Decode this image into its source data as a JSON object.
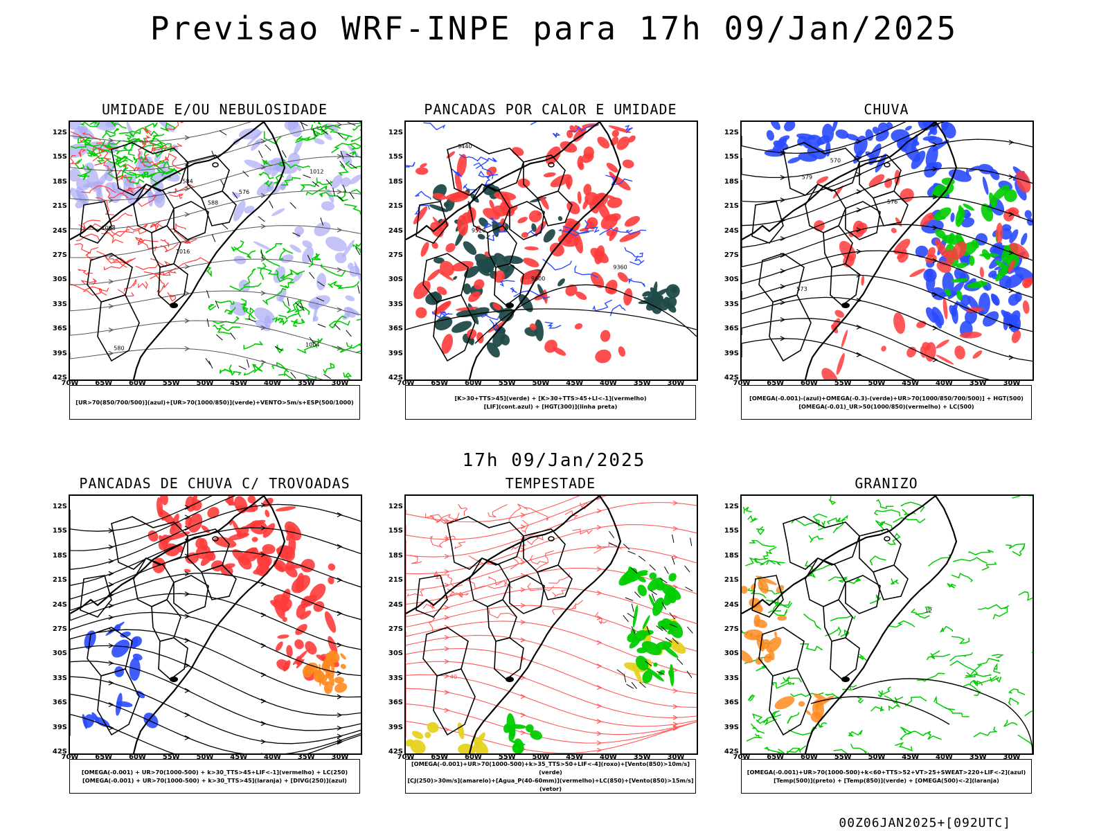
{
  "main_title": "Previsao WRF-INPE  para 17h 09/Jan/2025",
  "mid_title": "17h 09/Jan/2025",
  "footer": "00Z06JAN2025+[092UTC]",
  "lat_labels": [
    "12S",
    "15S",
    "18S",
    "21S",
    "24S",
    "27S",
    "30S",
    "33S",
    "36S",
    "39S",
    "42S"
  ],
  "lon_labels": [
    "70W",
    "65W",
    "60W",
    "55W",
    "50W",
    "45W",
    "40W",
    "35W",
    "30W"
  ],
  "panels": [
    {
      "title": "UMIDADE E/OU NEBULOSIDADE",
      "legend": [
        "[UR>70(850/700/500)](azul)+[UR>70(1000/850)](verde)+VENTO>5m/s+ESP(500/1000)"
      ],
      "contour_labels": [
        "1004",
        "1008",
        "1012",
        "1016",
        "576",
        "580",
        "584",
        "588"
      ]
    },
    {
      "title": "PANCADAS POR CALOR E UMIDADE",
      "legend": [
        "[K>30+TTS>45](verde) + [K>30+TTS>45+LI<-1](vermelho)",
        "[LIF](cont.azul) + [HGT(300)](linha preta)"
      ],
      "contour_labels": [
        "9600",
        "9520",
        "9440",
        "9360"
      ]
    },
    {
      "title": "CHUVA",
      "legend": [
        "[OMEGA(-0.001)-(azul)+OMEGA(-0.3)-(verde)+UR>70(1000/850/700/500)] + HGT(500)",
        "[OMEGA(-0.01)_UR>50(1000/850)(vermelho) + LC(500)"
      ],
      "contour_labels": [
        "573",
        "576",
        "579",
        "570"
      ]
    },
    {
      "title": "PANCADAS DE CHUVA C/ TROVOADAS",
      "legend": [
        "[OMEGA(-0.001) + UR>70(1000-500) + k>30_TTS>45+LIF<-1](vermelho) + LC(250)",
        "[OMEGA(-0.001) + UR>70(1000-500) + k>30_TTS>45](laranja) + [DIVG(250)](azul)"
      ],
      "contour_labels": []
    },
    {
      "title": "TEMPESTADE",
      "legend": [
        "[OMEGA(-0.001)+UR>70(1000-500)+k>35_TTS>50+LIF<-4](roxo)+[Vento(850)>10m/s](verde)",
        "[CJ(250)>30m/s](amarelo)+[Agua_P(40-60mm)](vermelho)+LC(850)+[Vento(850)>15m/s](vetor)"
      ],
      "contour_labels": [
        "40"
      ]
    },
    {
      "title": "GRANIZO",
      "legend": [
        "[OMEGA(-0.001)+UR>70(1000-500)+k<60+TTS>52+VT>25+SWEAT>220+LIF<-2](azul)",
        "[Temp(500)](preto) + [Temp(850)](verde) + [OMEGA(500)<-2](laranja)"
      ],
      "contour_labels": [
        "12"
      ]
    }
  ],
  "colors": {
    "moisture_blue": "#a9a9f5",
    "moisture_green": "#00cc00",
    "red": "#ff3b3b",
    "dark_teal": "#1f4a48",
    "blue": "#2a4aff",
    "orange": "#ff8a1e",
    "yellow": "#e6d21e"
  }
}
